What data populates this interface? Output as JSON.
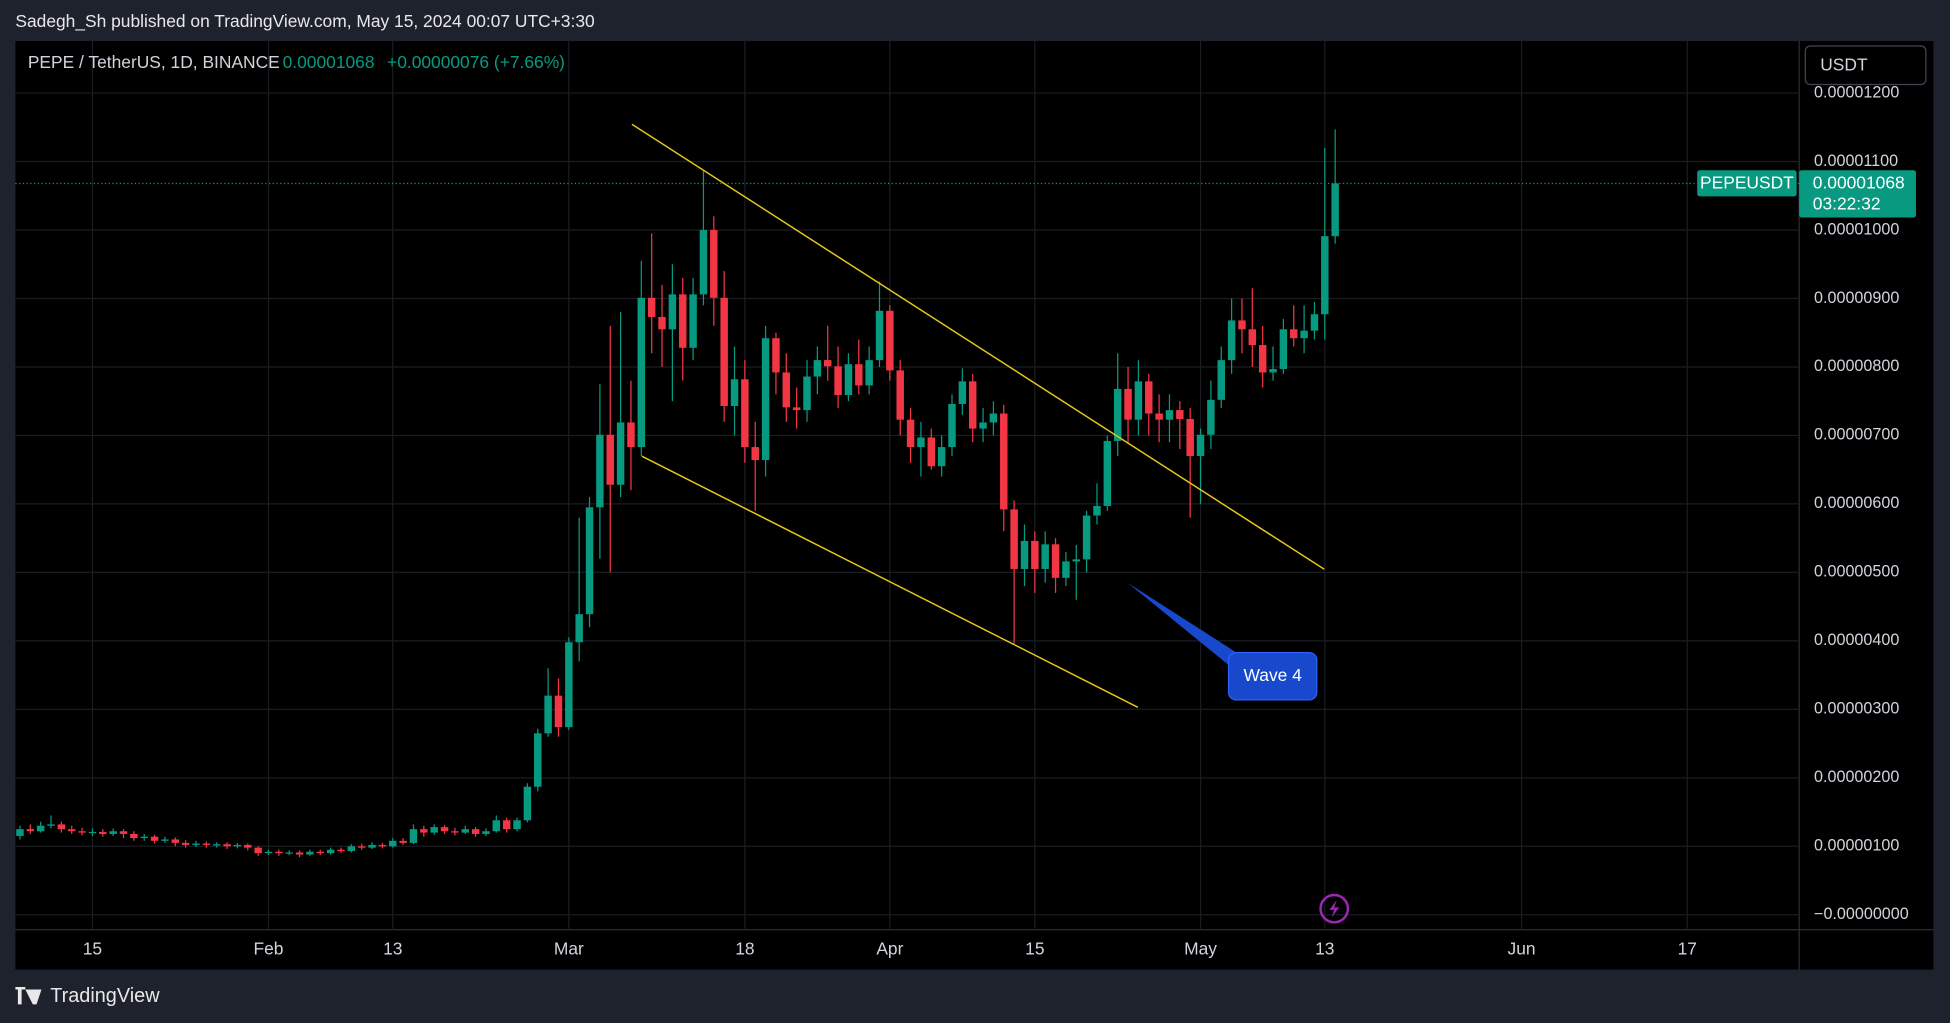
{
  "header": "Sadegh_Sh published on TradingView.com, May 15, 2024 00:07 UTC+3:30",
  "brand": "TradingView",
  "chart_data": {
    "type": "candlestick",
    "title": "PEPE / TetherUS, 1D, BINANCE",
    "price": "0.00001068",
    "change": "+0.00000076 (+7.66%)",
    "currency": "USDT",
    "symbol": "PEPEUSDT",
    "countdown": "03:22:32",
    "annotation": "Wave 4",
    "up_color": "#089981",
    "down_color": "#f23645",
    "grid": true,
    "xlim": [
      -0.44,
      171.8
    ],
    "xticks": [
      {
        "value": 7,
        "label": "15"
      },
      {
        "value": 24,
        "label": "Feb"
      },
      {
        "value": 36,
        "label": "13"
      },
      {
        "value": 53,
        "label": "Mar"
      },
      {
        "value": 70,
        "label": "18"
      },
      {
        "value": 84,
        "label": "Apr"
      },
      {
        "value": 98,
        "label": "15"
      },
      {
        "value": 114,
        "label": "May"
      },
      {
        "value": 126,
        "label": "13"
      },
      {
        "value": 145,
        "label": "Jun"
      },
      {
        "value": 161,
        "label": "17"
      }
    ],
    "ylim": [
      -8e-07,
      1.276e-05
    ],
    "yticks": [
      {
        "value": 0,
        "label": "−0.00000000"
      },
      {
        "value": 1e-06,
        "label": "0.00000100"
      },
      {
        "value": 2e-06,
        "label": "0.00000200"
      },
      {
        "value": 3e-06,
        "label": "0.00000300"
      },
      {
        "value": 4e-06,
        "label": "0.00000400"
      },
      {
        "value": 5e-06,
        "label": "0.00000500"
      },
      {
        "value": 6e-06,
        "label": "0.00000600"
      },
      {
        "value": 7e-06,
        "label": "0.00000700"
      },
      {
        "value": 8e-06,
        "label": "0.00000800"
      },
      {
        "value": 9e-06,
        "label": "0.00000900"
      },
      {
        "value": 1e-05,
        "label": "0.00001000"
      },
      {
        "value": 1.1e-05,
        "label": "0.00001100"
      },
      {
        "value": 1.2e-05,
        "label": "0.00001200"
      }
    ],
    "ohlc": [
      [
        1.15e-06,
        1.3e-06,
        1.1e-06,
        1.25e-06
      ],
      [
        1.25e-06,
        1.32e-06,
        1.18e-06,
        1.22e-06
      ],
      [
        1.22e-06,
        1.36e-06,
        1.2e-06,
        1.3e-06
      ],
      [
        1.3e-06,
        1.45e-06,
        1.26e-06,
        1.32e-06
      ],
      [
        1.32e-06,
        1.36e-06,
        1.2e-06,
        1.25e-06
      ],
      [
        1.25e-06,
        1.3e-06,
        1.18e-06,
        1.22e-06
      ],
      [
        1.22e-06,
        1.27e-06,
        1.16e-06,
        1.2e-06
      ],
      [
        1.2e-06,
        1.26e-06,
        1.15e-06,
        1.21e-06
      ],
      [
        1.21e-06,
        1.25e-06,
        1.14e-06,
        1.18e-06
      ],
      [
        1.18e-06,
        1.26e-06,
        1.15e-06,
        1.22e-06
      ],
      [
        1.22e-06,
        1.25e-06,
        1.12e-06,
        1.18e-06
      ],
      [
        1.18e-06,
        1.22e-06,
        1.08e-06,
        1.12e-06
      ],
      [
        1.12e-06,
        1.18e-06,
        1.08e-06,
        1.14e-06
      ],
      [
        1.14e-06,
        1.17e-06,
        1.04e-06,
        1.08e-06
      ],
      [
        1.08e-06,
        1.14e-06,
        1.05e-06,
        1.1e-06
      ],
      [
        1.1e-06,
        1.13e-06,
        1e-06,
        1.05e-06
      ],
      [
        1.05e-06,
        1.09e-06,
        9.8e-07,
        1.02e-06
      ],
      [
        1.02e-06,
        1.08e-06,
        9.9e-07,
        1.04e-06
      ],
      [
        1.04e-06,
        1.07e-06,
        9.8e-07,
        1.02e-06
      ],
      [
        1.02e-06,
        1.06e-06,
        9.8e-07,
        1.03e-06
      ],
      [
        1.03e-06,
        1.06e-06,
        9.6e-07,
        1e-06
      ],
      [
        1e-06,
        1.05e-06,
        9.7e-07,
        1.02e-06
      ],
      [
        1.02e-06,
        1.04e-06,
        9.4e-07,
        9.8e-07
      ],
      [
        9.8e-07,
        1e-06,
        8.6e-07,
        9e-07
      ],
      [
        9e-07,
        9.5e-07,
        8.7e-07,
        9.2e-07
      ],
      [
        9.2e-07,
        9.5e-07,
        8.6e-07,
        9e-07
      ],
      [
        9e-07,
        9.4e-07,
        8.7e-07,
        9.1e-07
      ],
      [
        9.1e-07,
        9.4e-07,
        8.4e-07,
        8.8e-07
      ],
      [
        8.8e-07,
        9.5e-07,
        8.6e-07,
        9.2e-07
      ],
      [
        9.2e-07,
        9.5e-07,
        8.7e-07,
        9e-07
      ],
      [
        9e-07,
        9.8e-07,
        8.8e-07,
        9.5e-07
      ],
      [
        9.5e-07,
        9.8e-07,
        9e-07,
        9.3e-07
      ],
      [
        9.3e-07,
        1.03e-06,
        9.1e-07,
        1e-06
      ],
      [
        1e-06,
        1.04e-06,
        9.5e-07,
        9.8e-07
      ],
      [
        9.8e-07,
        1.06e-06,
        9.6e-07,
        1.02e-06
      ],
      [
        1.02e-06,
        1.05e-06,
        9.7e-07,
        1e-06
      ],
      [
        1e-06,
        1.12e-06,
        9.8e-07,
        1.08e-06
      ],
      [
        1.08e-06,
        1.12e-06,
        1.02e-06,
        1.05e-06
      ],
      [
        1.05e-06,
        1.32e-06,
        1.03e-06,
        1.25e-06
      ],
      [
        1.25e-06,
        1.3e-06,
        1.14e-06,
        1.2e-06
      ],
      [
        1.2e-06,
        1.32e-06,
        1.17e-06,
        1.28e-06
      ],
      [
        1.28e-06,
        1.31e-06,
        1.18e-06,
        1.22e-06
      ],
      [
        1.22e-06,
        1.27e-06,
        1.16e-06,
        1.2e-06
      ],
      [
        1.2e-06,
        1.3e-06,
        1.18e-06,
        1.25e-06
      ],
      [
        1.25e-06,
        1.28e-06,
        1.14e-06,
        1.18e-06
      ],
      [
        1.18e-06,
        1.26e-06,
        1.15e-06,
        1.22e-06
      ],
      [
        1.22e-06,
        1.45e-06,
        1.2e-06,
        1.38e-06
      ],
      [
        1.38e-06,
        1.42e-06,
        1.2e-06,
        1.25e-06
      ],
      [
        1.25e-06,
        1.42e-06,
        1.22e-06,
        1.38e-06
      ],
      [
        1.38e-06,
        1.92e-06,
        1.35e-06,
        1.87e-06
      ],
      [
        1.87e-06,
        2.72e-06,
        1.8e-06,
        2.65e-06
      ],
      [
        2.65e-06,
        3.6e-06,
        2.6e-06,
        3.2e-06
      ],
      [
        3.2e-06,
        3.45e-06,
        2.6e-06,
        2.74e-06
      ],
      [
        2.74e-06,
        4.05e-06,
        2.7e-06,
        3.98e-06
      ],
      [
        3.98e-06,
        5.8e-06,
        3.7e-06,
        4.39e-06
      ],
      [
        4.39e-06,
        6.1e-06,
        4.2e-06,
        5.95e-06
      ],
      [
        5.95e-06,
        7.75e-06,
        5.2e-06,
        7.01e-06
      ],
      [
        7.01e-06,
        8.6e-06,
        5e-06,
        6.28e-06
      ],
      [
        6.28e-06,
        8.8e-06,
        6.1e-06,
        7.19e-06
      ],
      [
        7.19e-06,
        7.8e-06,
        6.2e-06,
        6.83e-06
      ],
      [
        6.83e-06,
        9.55e-06,
        6.7e-06,
        9.01e-06
      ],
      [
        9.01e-06,
        9.95e-06,
        8.2e-06,
        8.73e-06
      ],
      [
        8.73e-06,
        9.2e-06,
        8e-06,
        8.55e-06
      ],
      [
        8.55e-06,
        9.5e-06,
        7.5e-06,
        9.06e-06
      ],
      [
        9.06e-06,
        9.3e-06,
        7.8e-06,
        8.28e-06
      ],
      [
        8.28e-06,
        9.3e-06,
        8.1e-06,
        9.06e-06
      ],
      [
        9.06e-06,
        1.086e-05,
        8.9e-06,
        1e-05
      ],
      [
        1e-05,
        1.02e-05,
        8.6e-06,
        9.01e-06
      ],
      [
        9.01e-06,
        9.4e-06,
        7.2e-06,
        7.43e-06
      ],
      [
        7.43e-06,
        8.3e-06,
        7e-06,
        7.82e-06
      ],
      [
        7.82e-06,
        8.1e-06,
        6.6e-06,
        6.83e-06
      ],
      [
        6.83e-06,
        7.2e-06,
        5.9e-06,
        6.64e-06
      ],
      [
        6.64e-06,
        8.6e-06,
        6.4e-06,
        8.42e-06
      ],
      [
        8.42e-06,
        8.5e-06,
        7.6e-06,
        7.92e-06
      ],
      [
        7.92e-06,
        8.2e-06,
        7.2e-06,
        7.41e-06
      ],
      [
        7.41e-06,
        7.7e-06,
        7.1e-06,
        7.37e-06
      ],
      [
        7.37e-06,
        8.1e-06,
        7.2e-06,
        7.86e-06
      ],
      [
        7.86e-06,
        8.3e-06,
        7.6e-06,
        8.1e-06
      ],
      [
        8.1e-06,
        8.6e-06,
        7.8e-06,
        8.01e-06
      ],
      [
        8.01e-06,
        8.3e-06,
        7.4e-06,
        7.59e-06
      ],
      [
        7.59e-06,
        8.2e-06,
        7.5e-06,
        8.04e-06
      ],
      [
        8.04e-06,
        8.4e-06,
        7.6e-06,
        7.73e-06
      ],
      [
        7.73e-06,
        8.3e-06,
        7.6e-06,
        8.1e-06
      ],
      [
        8.1e-06,
        9.25e-06,
        8e-06,
        8.82e-06
      ],
      [
        8.82e-06,
        8.9e-06,
        7.8e-06,
        7.95e-06
      ],
      [
        7.95e-06,
        8.1e-06,
        7e-06,
        7.23e-06
      ],
      [
        7.23e-06,
        7.4e-06,
        6.6e-06,
        6.83e-06
      ],
      [
        6.83e-06,
        7.2e-06,
        6.4e-06,
        6.97e-06
      ],
      [
        6.97e-06,
        7.1e-06,
        6.5e-06,
        6.55e-06
      ],
      [
        6.55e-06,
        7e-06,
        6.4e-06,
        6.83e-06
      ],
      [
        6.83e-06,
        7.6e-06,
        6.7e-06,
        7.46e-06
      ],
      [
        7.46e-06,
        7.98e-06,
        7.3e-06,
        7.79e-06
      ],
      [
        7.79e-06,
        7.9e-06,
        6.9e-06,
        7.1e-06
      ],
      [
        7.1e-06,
        7.4e-06,
        6.9e-06,
        7.19e-06
      ],
      [
        7.19e-06,
        7.5e-06,
        7e-06,
        7.32e-06
      ],
      [
        7.32e-06,
        7.45e-06,
        5.6e-06,
        5.92e-06
      ],
      [
        5.92e-06,
        6.05e-06,
        3.96e-06,
        5.05e-06
      ],
      [
        5.05e-06,
        5.7e-06,
        4.8e-06,
        5.46e-06
      ],
      [
        5.46e-06,
        5.6e-06,
        4.7e-06,
        5.05e-06
      ],
      [
        5.05e-06,
        5.6e-06,
        4.85e-06,
        5.41e-06
      ],
      [
        5.41e-06,
        5.5e-06,
        4.7e-06,
        4.92e-06
      ],
      [
        4.92e-06,
        5.3e-06,
        4.8e-06,
        5.16e-06
      ],
      [
        5.16e-06,
        5.4e-06,
        4.6e-06,
        5.19e-06
      ],
      [
        5.19e-06,
        5.9e-06,
        5e-06,
        5.83e-06
      ],
      [
        5.83e-06,
        6.3e-06,
        5.7e-06,
        5.97e-06
      ],
      [
        5.97e-06,
        7e-06,
        5.9e-06,
        6.92e-06
      ],
      [
        6.92e-06,
        8.2e-06,
        6.7e-06,
        7.68e-06
      ],
      [
        7.68e-06,
        8e-06,
        6.9e-06,
        7.23e-06
      ],
      [
        7.23e-06,
        8.1e-06,
        7e-06,
        7.79e-06
      ],
      [
        7.79e-06,
        7.9e-06,
        7e-06,
        7.32e-06
      ],
      [
        7.32e-06,
        7.6e-06,
        6.9e-06,
        7.23e-06
      ],
      [
        7.23e-06,
        7.6e-06,
        6.9e-06,
        7.37e-06
      ],
      [
        7.37e-06,
        7.5e-06,
        6.8e-06,
        7.24e-06
      ],
      [
        7.24e-06,
        7.4e-06,
        5.8e-06,
        6.7e-06
      ],
      [
        6.7e-06,
        7.1e-06,
        6e-06,
        7.01e-06
      ],
      [
        7.01e-06,
        7.8e-06,
        6.8e-06,
        7.52e-06
      ],
      [
        7.52e-06,
        8.3e-06,
        7.4e-06,
        8.1e-06
      ],
      [
        8.1e-06,
        9e-06,
        7.9e-06,
        8.68e-06
      ],
      [
        8.68e-06,
        9e-06,
        8.2e-06,
        8.55e-06
      ],
      [
        8.55e-06,
        9.15e-06,
        8e-06,
        8.32e-06
      ],
      [
        8.32e-06,
        8.6e-06,
        7.7e-06,
        7.92e-06
      ],
      [
        7.92e-06,
        8.3e-06,
        7.8e-06,
        7.97e-06
      ],
      [
        7.97e-06,
        8.7e-06,
        7.9e-06,
        8.55e-06
      ],
      [
        8.55e-06,
        8.9e-06,
        8.3e-06,
        8.42e-06
      ],
      [
        8.42e-06,
        8.9e-06,
        8.2e-06,
        8.53e-06
      ],
      [
        8.53e-06,
        8.95e-06,
        8.4e-06,
        8.77e-06
      ],
      [
        8.77e-06,
        1.12e-05,
        8.4e-06,
        9.91e-06
      ],
      [
        9.91e-06,
        1.147e-05,
        9.8e-06,
        1.068e-05
      ]
    ]
  }
}
